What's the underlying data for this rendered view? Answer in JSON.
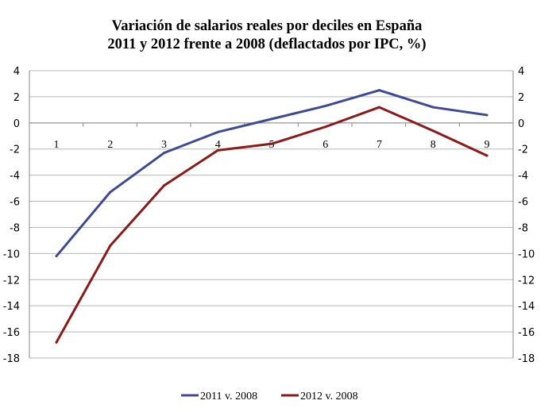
{
  "chart_data": {
    "type": "line",
    "title_line1": "Variación de salarios reales por deciles en España",
    "title_line2": "2011 y 2012 frente a 2008 (deflactados por IPC, %)",
    "categories": [
      "1",
      "2",
      "3",
      "4",
      "5",
      "6",
      "7",
      "8",
      "9"
    ],
    "ylim": [
      -18,
      4
    ],
    "yticks": [
      "4",
      "2",
      "0",
      "-2",
      "-4",
      "-6",
      "-8",
      "-10",
      "-12",
      "-14",
      "-16",
      "-18"
    ],
    "grid": true,
    "legend_position": "bottom",
    "series": [
      {
        "name": "2011 v. 2008",
        "color": "#3f4a94",
        "values": [
          -10.2,
          -5.3,
          -2.3,
          -0.7,
          0.3,
          1.3,
          2.5,
          1.2,
          0.6
        ]
      },
      {
        "name": "2012 v. 2008",
        "color": "#8b1a1a",
        "values": [
          -16.8,
          -9.4,
          -4.8,
          -2.1,
          -1.6,
          -0.3,
          1.2,
          -0.6,
          -2.5
        ]
      }
    ]
  }
}
